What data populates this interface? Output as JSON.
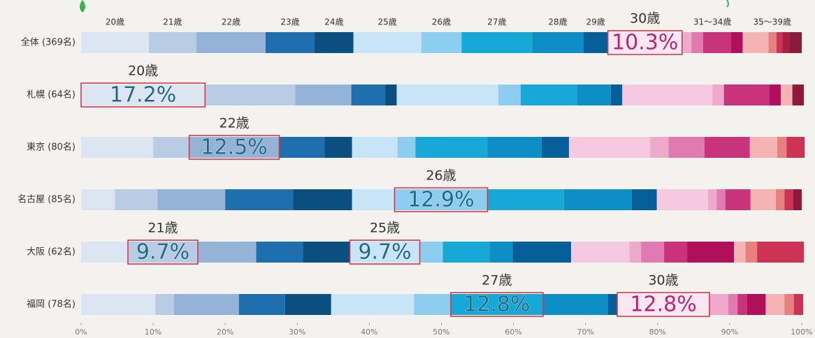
{
  "chart_data": {
    "type": "stacked-bar-horizontal",
    "categories": [
      "全体 (369名)",
      "札幌 (64名)",
      "東京 (80名)",
      "名古屋 (85名)",
      "大阪 (62名)",
      "福岡 (78名)"
    ],
    "xlim": [
      0,
      100
    ],
    "xticks": [
      {
        "value": 0,
        "label": "0%"
      },
      {
        "value": 10,
        "label": "10%"
      },
      {
        "value": 20,
        "label": "20%"
      },
      {
        "value": 30,
        "label": "30%"
      },
      {
        "value": 40,
        "label": "40%"
      },
      {
        "value": 50,
        "label": "50%"
      },
      {
        "value": 60,
        "label": "60%"
      },
      {
        "value": 70,
        "label": "70%"
      },
      {
        "value": 80,
        "label": "80%"
      },
      {
        "value": 90,
        "label": "90%"
      },
      {
        "value": 100,
        "label": "100%"
      }
    ],
    "group_labels": [
      "31〜34歳",
      "35〜39歳"
    ],
    "series": [
      {
        "name": "20歳",
        "color": "#dce6f2",
        "values": [
          9.4,
          17.2,
          10.0,
          4.7,
          6.5,
          10.3
        ],
        "value_labels": [
          null,
          "17.2%",
          null,
          null,
          null,
          null
        ]
      },
      {
        "name": "21歳",
        "color": "#b8cce4",
        "values": [
          6.6,
          12.5,
          5.0,
          5.9,
          9.7,
          2.6
        ],
        "value_labels": [
          null,
          null,
          null,
          null,
          "9.7%",
          null
        ]
      },
      {
        "name": "22歳",
        "color": "#95b3d7",
        "values": [
          9.6,
          7.8,
          12.5,
          9.4,
          8.1,
          9.0
        ],
        "value_labels": [
          null,
          null,
          "12.5%",
          null,
          null,
          null
        ]
      },
      {
        "name": "23歳",
        "color": "#1f6fae",
        "values": [
          6.8,
          4.7,
          6.3,
          9.4,
          6.5,
          6.4
        ],
        "value_labels": [
          null,
          null,
          null,
          null,
          null,
          null
        ]
      },
      {
        "name": "24歳",
        "color": "#0a4f80",
        "values": [
          5.4,
          1.6,
          3.8,
          8.2,
          6.5,
          6.4
        ],
        "value_labels": [
          null,
          null,
          null,
          null,
          null,
          null
        ]
      },
      {
        "name": "25歳",
        "color": "#c8e5f8",
        "values": [
          9.4,
          14.1,
          6.3,
          5.9,
          9.7,
          11.5
        ],
        "value_labels": [
          null,
          null,
          null,
          null,
          "9.7%",
          null
        ]
      },
      {
        "name": "26歳",
        "color": "#8ccdf0",
        "values": [
          5.6,
          3.1,
          2.5,
          12.9,
          3.2,
          5.1
        ],
        "value_labels": [
          null,
          null,
          null,
          "12.9%",
          null,
          null
        ]
      },
      {
        "name": "27歳",
        "color": "#16a9d8",
        "values": [
          9.8,
          7.8,
          10.0,
          10.6,
          6.5,
          12.8
        ],
        "value_labels": [
          null,
          null,
          null,
          null,
          null,
          "12.8%"
        ]
      },
      {
        "name": "28歳",
        "color": "#0d8ec7",
        "values": [
          7.1,
          4.7,
          7.5,
          9.4,
          3.2,
          9.0
        ],
        "value_labels": [
          null,
          null,
          null,
          null,
          null,
          null
        ]
      },
      {
        "name": "29歳",
        "color": "#075f99",
        "values": [
          3.4,
          1.6,
          3.8,
          3.5,
          8.1,
          1.3
        ],
        "value_labels": [
          null,
          null,
          null,
          null,
          null,
          null
        ]
      },
      {
        "name": "30歳",
        "color": "#f6c9e0",
        "values": [
          10.3,
          12.5,
          11.3,
          7.1,
          8.1,
          12.8
        ],
        "value_labels": [
          "10.3%",
          null,
          null,
          null,
          null,
          "12.8%"
        ]
      },
      {
        "color": "#eeaacb",
        "values": [
          1.3,
          1.6,
          2.5,
          1.2,
          1.6,
          2.6
        ]
      },
      {
        "color": "#e07ab0",
        "values": [
          1.6,
          0,
          5.0,
          1.2,
          3.2,
          1.3
        ]
      },
      {
        "color": "#c8337c",
        "values": [
          3.9,
          6.3,
          6.3,
          3.5,
          3.2,
          1.3
        ]
      },
      {
        "color": "#b0105a",
        "values": [
          1.6,
          1.6,
          0,
          0,
          6.5,
          2.6
        ]
      },
      {
        "color": "#f4b4b4",
        "values": [
          3.6,
          1.6,
          3.8,
          3.5,
          1.6,
          2.6
        ]
      },
      {
        "color": "#e88080",
        "values": [
          1.1,
          0,
          1.3,
          1.2,
          1.6,
          1.3
        ]
      },
      {
        "color": "#cc3355",
        "values": [
          0.8,
          0,
          2.5,
          1.2,
          6.5,
          1.3
        ]
      },
      {
        "color": "#a82040",
        "values": [
          1.0,
          0,
          0,
          0,
          0,
          0
        ]
      },
      {
        "color": "#8c1a3c",
        "values": [
          1.7,
          1.6,
          0,
          1.2,
          0,
          0
        ]
      }
    ]
  }
}
